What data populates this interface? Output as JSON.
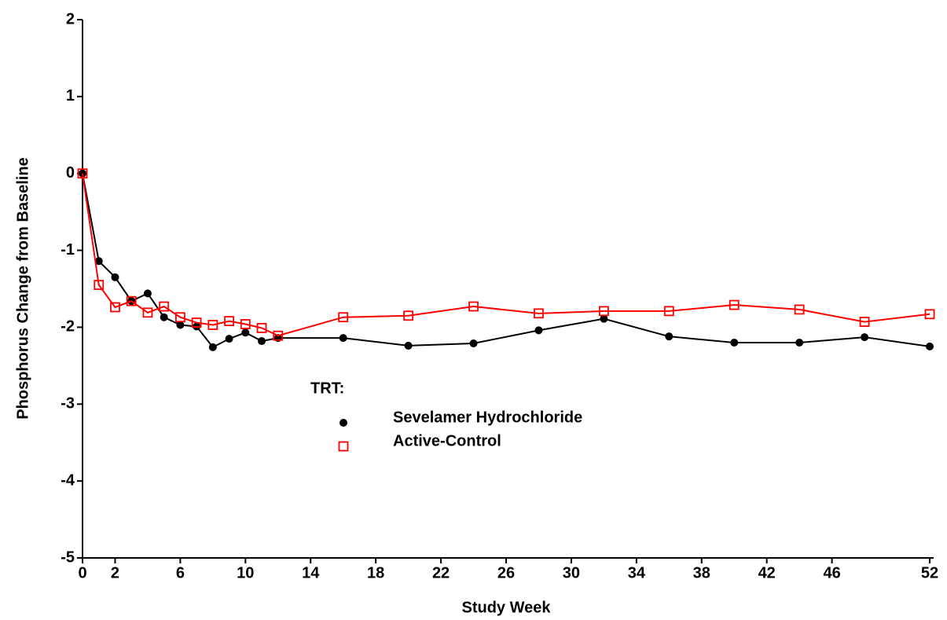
{
  "chart_data": {
    "type": "line",
    "x_label": "Study Week",
    "y_label": "Phosphorus Change from Baseline",
    "legend_title": "TRT:",
    "legend": "center",
    "xlim": [
      0,
      52
    ],
    "xticks": [
      0,
      2,
      6,
      10,
      14,
      18,
      22,
      26,
      30,
      34,
      38,
      42,
      46,
      52
    ],
    "ylim": [
      -5,
      2
    ],
    "yticks": [
      -5,
      -4,
      -3,
      -2,
      -1,
      0,
      1,
      2
    ],
    "x": [
      0,
      1,
      2,
      3,
      4,
      5,
      6,
      7,
      8,
      9,
      10,
      11,
      12,
      16,
      20,
      24,
      28,
      32,
      36,
      40,
      44,
      48,
      52
    ],
    "series": [
      {
        "name": "Sevelamer Hydrochloride",
        "color": "#000000",
        "marker": "circle",
        "values": [
          0,
          -1.14,
          -1.35,
          -1.66,
          -1.56,
          -1.87,
          -1.97,
          -1.99,
          -2.26,
          -2.15,
          -2.07,
          -2.18,
          -2.14,
          -2.14,
          -2.24,
          -2.21,
          -2.04,
          -1.89,
          -2.12,
          -2.2,
          -2.2,
          -2.13,
          -2.25
        ]
      },
      {
        "name": "Active-Control",
        "color": "#ff0000",
        "marker": "square",
        "values": [
          0,
          -1.45,
          -1.74,
          -1.66,
          -1.81,
          -1.73,
          -1.87,
          -1.94,
          -1.97,
          -1.92,
          -1.96,
          -2.01,
          -2.11,
          -1.87,
          -1.85,
          -1.73,
          -1.82,
          -1.79,
          -1.79,
          -1.71,
          -1.77,
          -1.93,
          -1.83
        ]
      }
    ]
  }
}
